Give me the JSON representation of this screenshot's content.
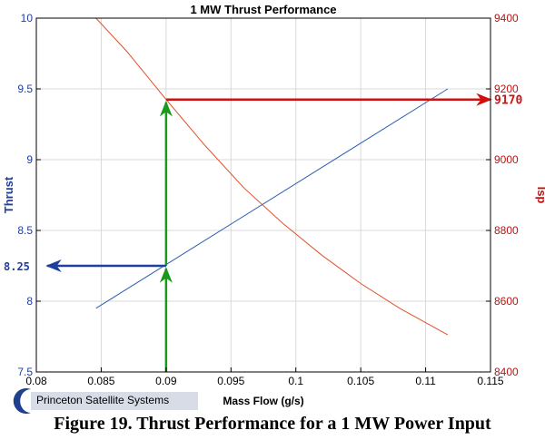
{
  "chart_data": {
    "type": "line",
    "title": "1 MW Thrust Performance",
    "xlabel": "Mass Flow (g/s)",
    "ylabel_left": "Thrust",
    "ylabel_right": "Isp",
    "xlim": [
      0.08,
      0.115
    ],
    "ylim_left": [
      7.5,
      10
    ],
    "ylim_right": [
      8400,
      9400
    ],
    "x_ticks": [
      "0.08",
      "0.085",
      "0.09",
      "0.095",
      "0.1",
      "0.105",
      "0.11",
      "0.115"
    ],
    "y_ticks_left": [
      "7.5",
      "8",
      "8.5",
      "9",
      "9.5",
      "10"
    ],
    "y_ticks_right": [
      "8400",
      "8600",
      "8800",
      "9000",
      "9200",
      "9400"
    ],
    "grid": true,
    "series": [
      {
        "name": "Thrust",
        "axis": "left",
        "color": "#2e5fb3",
        "x": [
          0.0846,
          0.1117
        ],
        "y": [
          7.95,
          9.5
        ]
      },
      {
        "name": "Isp",
        "axis": "right",
        "color": "#e0502a",
        "x": [
          0.0846,
          0.087,
          0.09,
          0.093,
          0.096,
          0.099,
          0.102,
          0.105,
          0.108,
          0.1117
        ],
        "y": [
          9400,
          9305,
          9170,
          9040,
          8920,
          8820,
          8730,
          8650,
          8580,
          8505
        ]
      }
    ],
    "annotations": [
      {
        "label": "8.25",
        "axis": "left",
        "value": 8.25,
        "color": "#1f3f9f"
      },
      {
        "label": "9170",
        "axis": "right",
        "value": 9170,
        "color": "#d01010"
      }
    ],
    "marker_x": 0.09
  },
  "caption": "Figure 19. Thrust Performance for a 1 MW Power Input",
  "logo": {
    "text": "Princeton Satellite Systems"
  }
}
